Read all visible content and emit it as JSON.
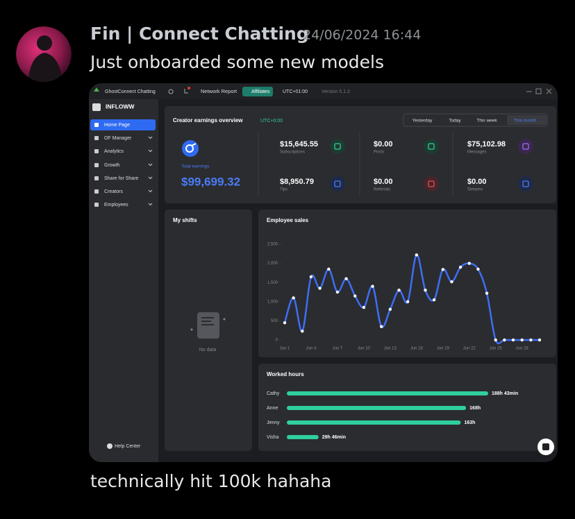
{
  "message": {
    "author": "Fin | Connect Chatting",
    "timestamp": "24/06/2024 16:44",
    "text": "Just onboarded some new models",
    "caption": "technically hit 100k hahaha"
  },
  "app": {
    "workspace": "GhostConnect Chatting",
    "network_report": "Network Report",
    "affiliates": "Affiliates",
    "timezone": "UTC+01:00",
    "version": "Version 5.1.2",
    "logo": "INFLOWW",
    "nav": [
      "Home Page",
      "OF Manager",
      "Analytics",
      "Growth",
      "Share for Share",
      "Creators",
      "Employees"
    ],
    "nav_active": 0,
    "help": "Help Center"
  },
  "earnings": {
    "title": "Creator earnings overview",
    "timezone": "UTC+0:00",
    "periods": [
      "Yesterday",
      "Today",
      "This week",
      "This month"
    ],
    "period_active": 3,
    "total_label": "Total earnings",
    "total": "$99,699.32",
    "items": [
      {
        "value": "$15,645.55",
        "label": "Subscriptions"
      },
      {
        "value": "$0.00",
        "label": "Posts"
      },
      {
        "value": "$75,102.98",
        "label": "Messages"
      },
      {
        "value": "$8,950.79",
        "label": "Tips"
      },
      {
        "value": "$0.00",
        "label": "Referrals"
      },
      {
        "value": "$0.00",
        "label": "Streams"
      }
    ]
  },
  "shifts": {
    "title": "My shifts",
    "empty": "No data"
  },
  "chart_data": [
    {
      "type": "line",
      "title": "Employee sales",
      "categories": [
        "Jun 1",
        null,
        null,
        "Jun 4",
        null,
        null,
        "Jun 7",
        null,
        null,
        "Jun 10",
        null,
        null,
        "Jun 13",
        null,
        null,
        "Jun 16",
        null,
        null,
        "Jun 19",
        null,
        null,
        "Jun 22",
        null,
        null,
        "Jun 25",
        null,
        null,
        "Jun 28",
        null,
        null
      ],
      "series": [
        {
          "color": "#3d6ef5",
          "values": [
            450,
            1100,
            230,
            1650,
            1350,
            1850,
            1250,
            1600,
            1150,
            850,
            1400,
            350,
            800,
            1300,
            1000,
            2220,
            1300,
            1050,
            1840,
            1520,
            1900,
            2000,
            1850,
            1220,
            0,
            0,
            0,
            0,
            0,
            0
          ]
        }
      ],
      "ylim": [
        0,
        2500
      ],
      "yticks": [
        0,
        500,
        {
          "value": 1000,
          "label": "1,000"
        },
        {
          "value": 1500,
          "label": "1,500"
        },
        {
          "value": 2000,
          "label": "2,000"
        },
        {
          "value": 2500,
          "label": "2,500"
        }
      ]
    },
    {
      "type": "bar",
      "orientation": "horizontal",
      "title": "Worked hours",
      "categories": [
        "Cathy",
        "Anne",
        "Jenny",
        "Visha"
      ],
      "values": [
        188.72,
        168,
        163,
        29.77
      ],
      "value_labels": [
        "188h 43min",
        "168h",
        "163h",
        "29h 46min"
      ],
      "color": "#2fcf9e"
    }
  ]
}
